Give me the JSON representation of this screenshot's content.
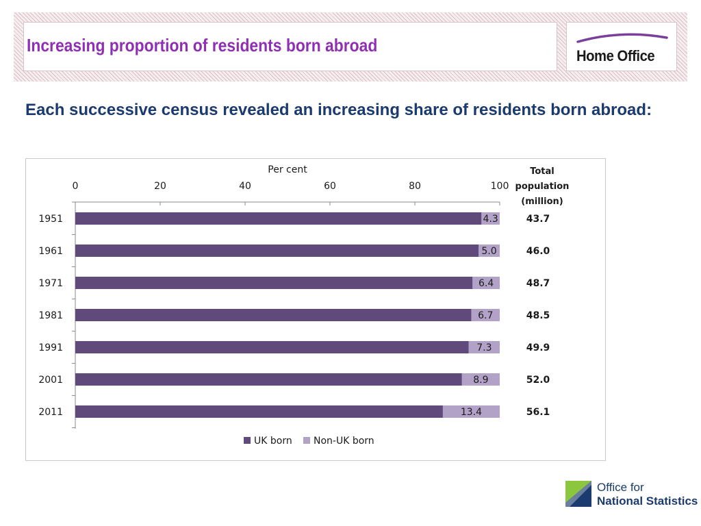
{
  "header": {
    "title": "Increasing proportion of residents born abroad",
    "logo_text": "Home Office",
    "title_color": "#8f2fb4"
  },
  "subtitle": "Each successive census revealed an increasing share of residents born abroad:",
  "footer": {
    "org_line1": "Office for",
    "org_line2": "National Statistics"
  },
  "chart_data": {
    "type": "bar",
    "orientation": "horizontal",
    "stacked": true,
    "xlabel": "Per cent",
    "xlim": [
      0,
      100
    ],
    "x_ticks": [
      0,
      20,
      40,
      60,
      80,
      100
    ],
    "categories": [
      "1951",
      "1961",
      "1971",
      "1981",
      "1991",
      "2001",
      "2011"
    ],
    "series": [
      {
        "name": "UK born",
        "values": [
          95.7,
          95.0,
          93.6,
          93.3,
          92.7,
          91.1,
          86.6
        ],
        "color": "#604a7b"
      },
      {
        "name": "Non-UK born",
        "values": [
          4.3,
          5.0,
          6.4,
          6.7,
          7.3,
          8.9,
          13.4
        ],
        "color": "#b3a2c7"
      }
    ],
    "data_labels": [
      "4.3",
      "5.0",
      "6.4",
      "6.7",
      "7.3",
      "8.9",
      "13.4"
    ],
    "side_column": {
      "header_lines": [
        "Total",
        "population",
        "(million)"
      ],
      "values": [
        "43.7",
        "46.0",
        "48.7",
        "48.5",
        "49.9",
        "52.0",
        "56.1"
      ]
    },
    "legend_position": "bottom",
    "grid": false
  }
}
